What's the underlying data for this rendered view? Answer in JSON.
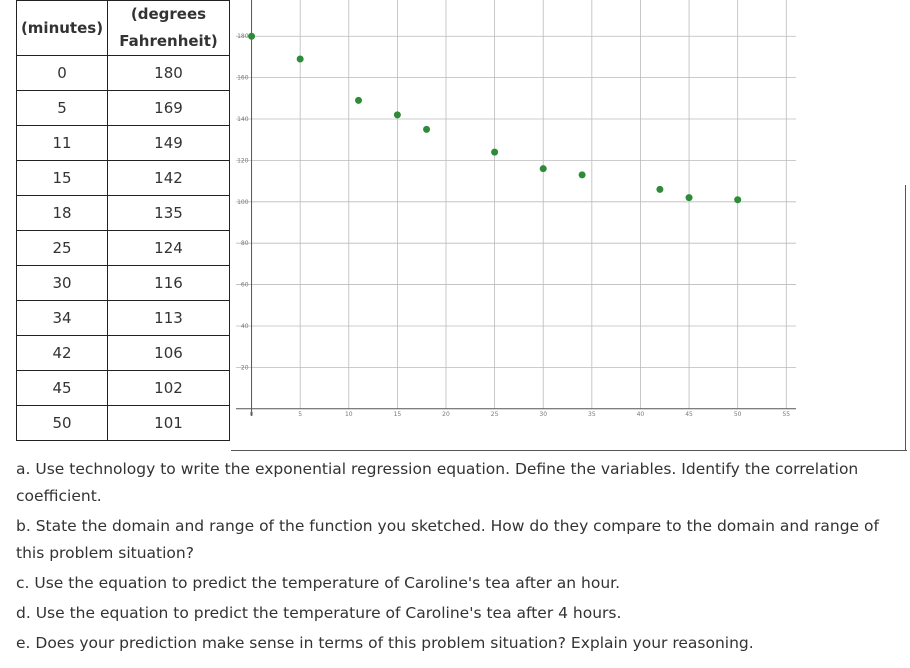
{
  "table": {
    "headers": [
      "(minutes)",
      "(degrees Fahrenheit)"
    ],
    "rows": [
      [
        0,
        180
      ],
      [
        5,
        169
      ],
      [
        11,
        149
      ],
      [
        15,
        142
      ],
      [
        18,
        135
      ],
      [
        25,
        124
      ],
      [
        30,
        116
      ],
      [
        34,
        113
      ],
      [
        42,
        106
      ],
      [
        45,
        102
      ],
      [
        50,
        101
      ]
    ]
  },
  "chart_data": {
    "type": "scatter",
    "x": [
      0,
      5,
      11,
      15,
      18,
      25,
      30,
      34,
      42,
      45,
      50
    ],
    "values": [
      180,
      169,
      149,
      142,
      135,
      124,
      116,
      113,
      106,
      102,
      101
    ],
    "color": "#2e8b3a",
    "xlim": [
      -1.6,
      56
    ],
    "ylim": [
      -3.5,
      197.5
    ],
    "xticks": [
      0,
      5,
      10,
      15,
      20,
      25,
      30,
      35,
      40,
      45,
      50,
      55
    ],
    "yticks": [
      20,
      40,
      60,
      80,
      100,
      120,
      140,
      160,
      180
    ],
    "grid": true
  },
  "questions": [
    "a. Use technology to write the exponential regression equation. Define the variables. Identify the correlation coefficient.",
    "b. State the domain and range of the function you sketched.  How do they compare to the domain and range of this problem situation?",
    "c. Use the equation to predict the temperature of Caroline's tea after an hour.",
    "d. Use the equation to predict the temperature of Caroline's tea after 4 hours.",
    "e. Does your prediction make sense in terms of this problem situation? Explain your reasoning."
  ]
}
